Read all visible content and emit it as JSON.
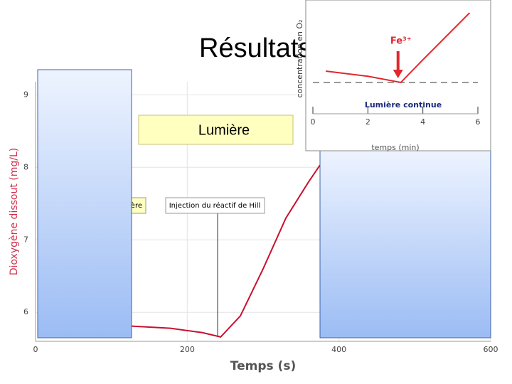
{
  "slide": {
    "title": "Résultats",
    "label": "Lumière"
  },
  "chart_data": [
    {
      "type": "line",
      "x_label": "Temps (s)",
      "y_label": "Dioxygène dissout (mg/L)",
      "x": [
        127,
        178,
        220,
        244,
        270,
        300,
        330,
        360,
        375
      ],
      "values": [
        5.81,
        5.78,
        5.72,
        5.66,
        5.95,
        6.6,
        7.3,
        7.8,
        8.03
      ],
      "color": "#c8102e",
      "xlim": [
        0,
        600
      ],
      "ylim": [
        5.6,
        9.18
      ],
      "xticks": [
        0,
        200,
        400,
        600
      ],
      "yticks": [
        6,
        7,
        8,
        9
      ],
      "grid": true,
      "annotations": [
        {
          "text": "Lumière",
          "x": 127
        },
        {
          "text": "Injection du réactif de Hill",
          "x": 240
        }
      ]
    },
    {
      "type": "line",
      "x_label": "temps (min)",
      "y_label": "concentration en O₂",
      "x": [
        0.47,
        2,
        3.2,
        4,
        5.7
      ],
      "values": [
        3.87,
        3.4,
        2.84,
        4.9,
        9.16
      ],
      "color": "#e0282e",
      "xlim": [
        0,
        6
      ],
      "ylim": [
        0,
        10
      ],
      "xticks": [
        0,
        2,
        4,
        6
      ],
      "reference_line": 2.84,
      "annotations": [
        {
          "text": "Fe³⁺",
          "x": 3.2
        },
        {
          "text": "Lumière continue"
        }
      ]
    }
  ]
}
